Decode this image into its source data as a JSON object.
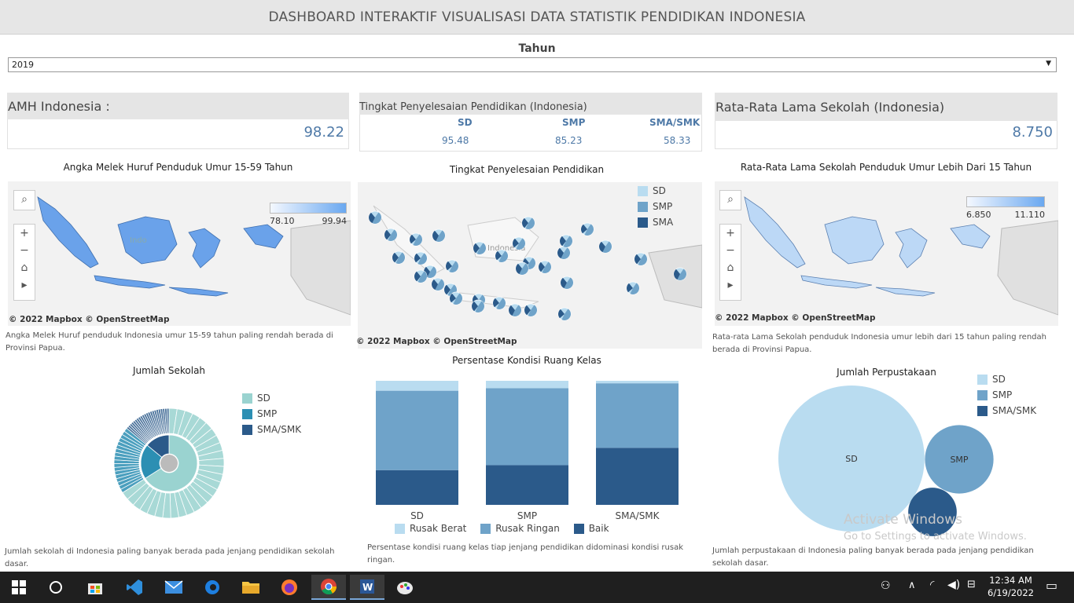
{
  "header": {
    "title": "DASHBOARD INTERAKTIF VISUALISASI DATA STATISTIK PENDIDIKAN INDONESIA"
  },
  "filter": {
    "label": "Tahun",
    "value": "2019"
  },
  "kpi_amh": {
    "title": "AMH Indonesia :",
    "value": "98.22"
  },
  "kpi_completion": {
    "title": "Tingkat Penyelesaian Pendidikan (Indonesia)",
    "items": [
      {
        "label": "SD",
        "value": "95.48"
      },
      {
        "label": "SMP",
        "value": "85.23"
      },
      {
        "label": "SMA/SMK",
        "value": "58.33"
      }
    ]
  },
  "kpi_rls": {
    "title": "Rata-Rata Lama Sekolah (Indonesia)",
    "value": "8.750"
  },
  "map_amh": {
    "title": "Angka Melek Huruf Penduduk Umur 15-59 Tahun",
    "legend_min": "78.10",
    "legend_max": "99.94",
    "copyright": "© 2022 Mapbox  © OpenStreetMap",
    "caption": "Angka Melek Huruf penduduk Indonesia umur 15-59 tahun paling rendah berada di Provinsi Papua."
  },
  "map_completion": {
    "title": "Tingkat Penyelesaian Pendidikan",
    "legend": [
      "SD",
      "SMP",
      "SMA"
    ],
    "map_label": "Indonesia",
    "copyright": "© 2022 Mapbox  © OpenStreetMap"
  },
  "map_rls": {
    "title": "Rata-Rata Lama Sekolah Penduduk Umur Lebih Dari  15 Tahun",
    "legend_min": "6.850",
    "legend_max": "11.110",
    "copyright": "© 2022 Mapbox  © OpenStreetMap",
    "caption": "Rata-rata Lama Sekolah penduduk Indonesia umur lebih dari 15 tahun paling rendah berada di Provinsi Papua."
  },
  "map_tools": [
    "search-icon",
    "zoom-in-icon",
    "zoom-out-icon",
    "home-icon",
    "play-icon"
  ],
  "chart_data": [
    {
      "type": "pie",
      "title": "Jumlah Sekolah",
      "legend": [
        "SD",
        "SMP",
        "SMA/SMK"
      ],
      "colors": [
        "#9ad3d0",
        "#2c8fb3",
        "#2b5a8a"
      ],
      "values": [
        66,
        20,
        14
      ],
      "caption": "Jumlah sekolah di Indonesia paling banyak berada pada jenjang pendidikan sekolah dasar."
    },
    {
      "type": "bar",
      "title": "Persentase Kondisi Ruang Kelas",
      "categories": [
        "SD",
        "SMP",
        "SMA/SMK"
      ],
      "series": [
        {
          "name": "Baik",
          "color": "#2b5a8a",
          "values": [
            28,
            32,
            46
          ]
        },
        {
          "name": "Rusak Ringan",
          "color": "#6fa3c9",
          "values": [
            64,
            62,
            52
          ]
        },
        {
          "name": "Rusak Berat",
          "color": "#b9dcf0",
          "values": [
            8,
            6,
            2
          ]
        }
      ],
      "legend_order": [
        "Rusak Berat",
        "Rusak Ringan",
        "Baik"
      ],
      "ylim": [
        0,
        100
      ],
      "caption": "Persentase kondisi ruang kelas tiap jenjang pendidikan didominasi kondisi rusak ringan."
    },
    {
      "type": "bubble",
      "title": "Jumlah Perpustakaan",
      "legend": [
        "SD",
        "SMP",
        "SMA/SMK"
      ],
      "colors": [
        "#b9dcf0",
        "#6fa3c9",
        "#2b5a8a"
      ],
      "values": [
        100,
        22,
        11
      ],
      "labels": [
        "SD",
        "SMP",
        ""
      ],
      "caption": "Jumlah perpustakaan di Indonesia paling banyak berada pada jenjang pendidikan sekolah dasar."
    }
  ],
  "watermark": {
    "line1": "Activate Windows",
    "line2": "Go to Settings to activate Windows."
  },
  "taskbar": {
    "apps": [
      "windows-icon",
      "search-circle-icon",
      "store-icon",
      "vscode-icon",
      "mail-icon",
      "edge-icon",
      "folder-icon",
      "firefox-icon",
      "chrome-icon",
      "word-icon",
      "paint-icon"
    ],
    "time": "12:34 AM",
    "date": "6/19/2022"
  }
}
